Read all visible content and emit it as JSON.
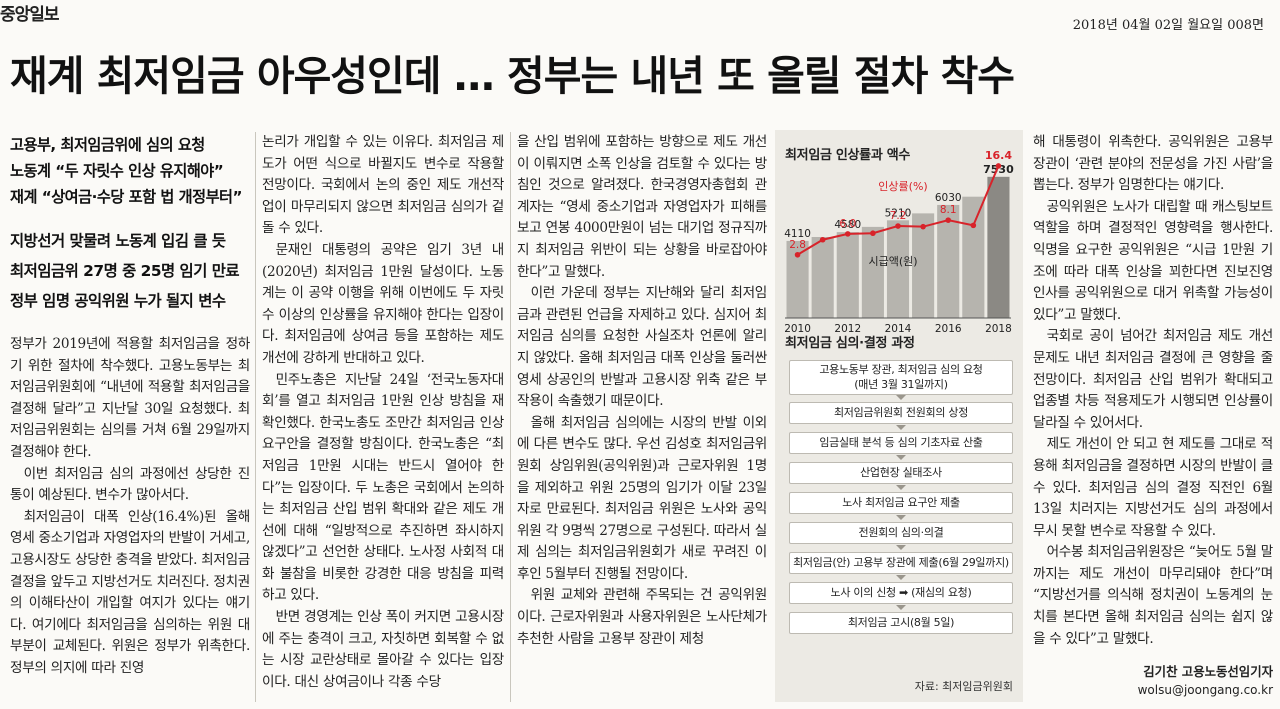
{
  "masthead": {
    "logo": "중앙일보",
    "dateline": "2018년 04월 02일 월요일 008면"
  },
  "headline": "재계 최저임금 아우성인데 … 정부는 내년 또 올릴 절차 착수",
  "subheads_top": [
    "고용부, 최저임금위에 심의 요청",
    "노동계 “두 자릿수 인상 유지해야”",
    "재계 “상여금·수당 포함 법 개정부터”"
  ],
  "subheads_bottom": [
    "지방선거 맞물려 노동계 입김 클 듯",
    "최저임금위 27명 중 25명 임기 만료",
    "정부 임명 공익위원 누가 될지 변수"
  ],
  "col1": [
    "정부가 2019년에 적용할 최저임금을 정하기 위한 절차에 착수했다. 고용노동부는 최저임금위원회에 “내년에 적용할 최저임금을 결정해 달라”고 지난달 30일 요청했다. 최저임금위원회는 심의를 거쳐 6월 29일까지 결정해야 한다.",
    "이번 최저임금 심의 과정에선 상당한 진통이 예상된다. 변수가 많아서다.",
    "최저임금이 대폭 인상(16.4%)된 올해 영세 중소기업과 자영업자의 반발이 거세고, 고용시장도 상당한 충격을 받았다. 최저임금 결정을 앞두고 지방선거도 치러진다. 정치권의 이해타산이 개입할 여지가 있다는 얘기다. 여기에다 최저임금을 심의하는 위원 대부분이 교체된다. 위원은 정부가 위촉한다. 정부의 의지에 따라 진영"
  ],
  "col2": [
    "논리가 개입할 수 있는 이유다. 최저임금 제도가 어떤 식으로 바뀔지도 변수로 작용할 전망이다. 국회에서 논의 중인 제도 개선작업이 마무리되지 않으면 최저임금 심의가 겉돌 수 있다.",
    "문재인 대통령의 공약은 임기 3년 내(2020년) 최저임금 1만원 달성이다. 노동계는 이 공약 이행을 위해 이번에도 두 자릿수 이상의 인상률을 유지해야 한다는 입장이다. 최저임금에 상여금 등을 포함하는 제도 개선에 강하게 반대하고 있다.",
    "민주노총은 지난달 24일 ‘전국노동자대회’를 열고 최저임금 1만원 인상 방침을 재확인했다. 한국노총도 조만간 최저임금 인상 요구안을 결정할 방침이다. 한국노총은 “최저임금 1만원 시대는 반드시 열어야 한다”는 입장이다. 두 노총은 국회에서 논의하는 최저임금 산입 범위 확대와 같은 제도 개선에 대해 “일방적으로 추진하면 좌시하지 않겠다”고 선언한 상태다. 노사정 사회적 대화 불참을 비롯한 강경한 대응 방침을 피력하고 있다.",
    "반면 경영계는 인상 폭이 커지면 고용시장에 주는 충격이 크고, 자칫하면 회복할 수 없는 시장 교란상태로 몰아갈 수 있다는 입장이다. 대신 상여금이나 각종 수당"
  ],
  "col3": [
    "을 산입 범위에 포함하는 방향으로 제도 개선이 이뤄지면 소폭 인상을 검토할 수 있다는 방침인 것으로 알려졌다. 한국경영자총협회 관계자는 “영세 중소기업과 자영업자가 피해를 보고 연봉 4000만원이 넘는 대기업 정규직까지 최저임금 위반이 되는 상황을 바로잡아야 한다”고 말했다.",
    "이런 가운데 정부는 지난해와 달리 최저임금과 관련된 언급을 자제하고 있다. 심지어 최저임금 심의를 요청한 사실조차 언론에 알리지 않았다. 올해 최저임금 대폭 인상을 둘러싼 영세 상공인의 반발과 고용시장 위축 같은 부작용이 속출했기 때문이다.",
    "올해 최저임금 심의에는 시장의 반발 이외에 다른 변수도 많다. 우선 김성호 최저임금위원회 상임위원(공익위원)과 근로자위원 1명을 제외하고 위원 25명의 임기가 이달 23일 자로 만료된다. 최저임금 위원은 노사와 공익위원 각 9명씩 27명으로 구성된다. 따라서 실제 심의는 최저임금위원회가 새로 꾸려진 이후인 5월부터 진행될 전망이다.",
    "위원 교체와 관련해 주목되는 건 공익위원이다. 근로자위원과 사용자위원은 노사단체가 추천한 사람을 고용부 장관이 제청"
  ],
  "col5": [
    "해 대통령이 위촉한다. 공익위원은 고용부 장관이 ‘관련 분야의 전문성을 가진 사람’을 뽑는다. 정부가 임명한다는 얘기다.",
    "공익위원은 노사가 대립할 때 캐스팅보트 역할을 하며 결정적인 영향력을 행사한다. 익명을 요구한 공익위원은 “시급 1만원 기조에 따라 대폭 인상을 꾀한다면 진보진영 인사를 공익위원으로 대거 위촉할 가능성이 있다”고 말했다.",
    "국회로 공이 넘어간 최저임금 제도 개선 문제도 내년 최저임금 결정에 큰 영향을 줄 전망이다. 최저임금 산입 범위가 확대되고 업종별 차등 적용제도가 시행되면 인상률이 달라질 수 있어서다.",
    "제도 개선이 안 되고 현 제도를 그대로 적용해 최저임금을 결정하면 시장의 반발이 클 수 있다. 최저임금 심의 결정 직전인 6월 13일 치러지는 지방선거도 심의 과정에서 무시 못할 변수로 작용할 수 있다.",
    "어수봉 최저임금위원장은 “늦어도 5월 말까지는 제도 개선이 마무리돼야 한다”며 “지방선거를 의식해 정치권이 노동계의 눈치를 본다면 올해 최저임금 심의는 쉽지 않을 수 있다”고 말했다."
  ],
  "byline": {
    "name": "김기찬 고용노동선임기자",
    "email": "wolsu@joongang.co.kr"
  },
  "chart_title": "최저임금 인상률과 액수",
  "chart_data": {
    "type": "bar",
    "title": "최저임금 인상률과 액수",
    "categories": [
      "2010",
      "2011",
      "2012",
      "2013",
      "2014",
      "2015",
      "2016",
      "2017",
      "2018"
    ],
    "x_tick_labels": [
      "2010",
      "2012",
      "2014",
      "2016",
      "2018"
    ],
    "series": [
      {
        "name": "시급액(원)",
        "type": "bar",
        "values": [
          4110,
          4320,
          4580,
          4860,
          5210,
          5580,
          6030,
          6470,
          7530
        ],
        "labels": [
          "4110",
          "",
          "4580",
          "",
          "5210",
          "",
          "6030",
          "",
          "7530"
        ]
      },
      {
        "name": "인상률(%)",
        "type": "line",
        "values": [
          2.8,
          5.1,
          6.0,
          6.1,
          7.2,
          7.1,
          8.1,
          7.3,
          16.4
        ],
        "labels": [
          "2.8",
          "",
          "6.0",
          "",
          "7.2",
          "",
          "8.1",
          "",
          "16.4"
        ]
      }
    ],
    "colors": {
      "bar": "#b6b4ae",
      "bar_last": "#8b8984",
      "line": "#d8232a"
    }
  },
  "process_title": "최저임금 심의·결정 과정",
  "process_steps": [
    {
      "line1": "고용노동부 장관, 최저임금 심의 요청",
      "line2": "(매년 3월 31일까지)"
    },
    {
      "line1": "최저임금위원회 전원회의 상정"
    },
    {
      "line1": "임금실태 분석 등 심의 기초자료 산출"
    },
    {
      "line1": "산업현장 실태조사"
    },
    {
      "line1": "노사 최저임금 요구안 제출"
    },
    {
      "line1": "전원회의 심의·의결"
    },
    {
      "line1": "최저임금(안) 고용부 장관에 제출(6월 29일까지)"
    },
    {
      "line1": "노사 이의 신청 ➡ (재심의 요청)"
    },
    {
      "line1": "최저임금 고시(8월 5일)"
    }
  ],
  "source": "자료: 최저임금위원회"
}
